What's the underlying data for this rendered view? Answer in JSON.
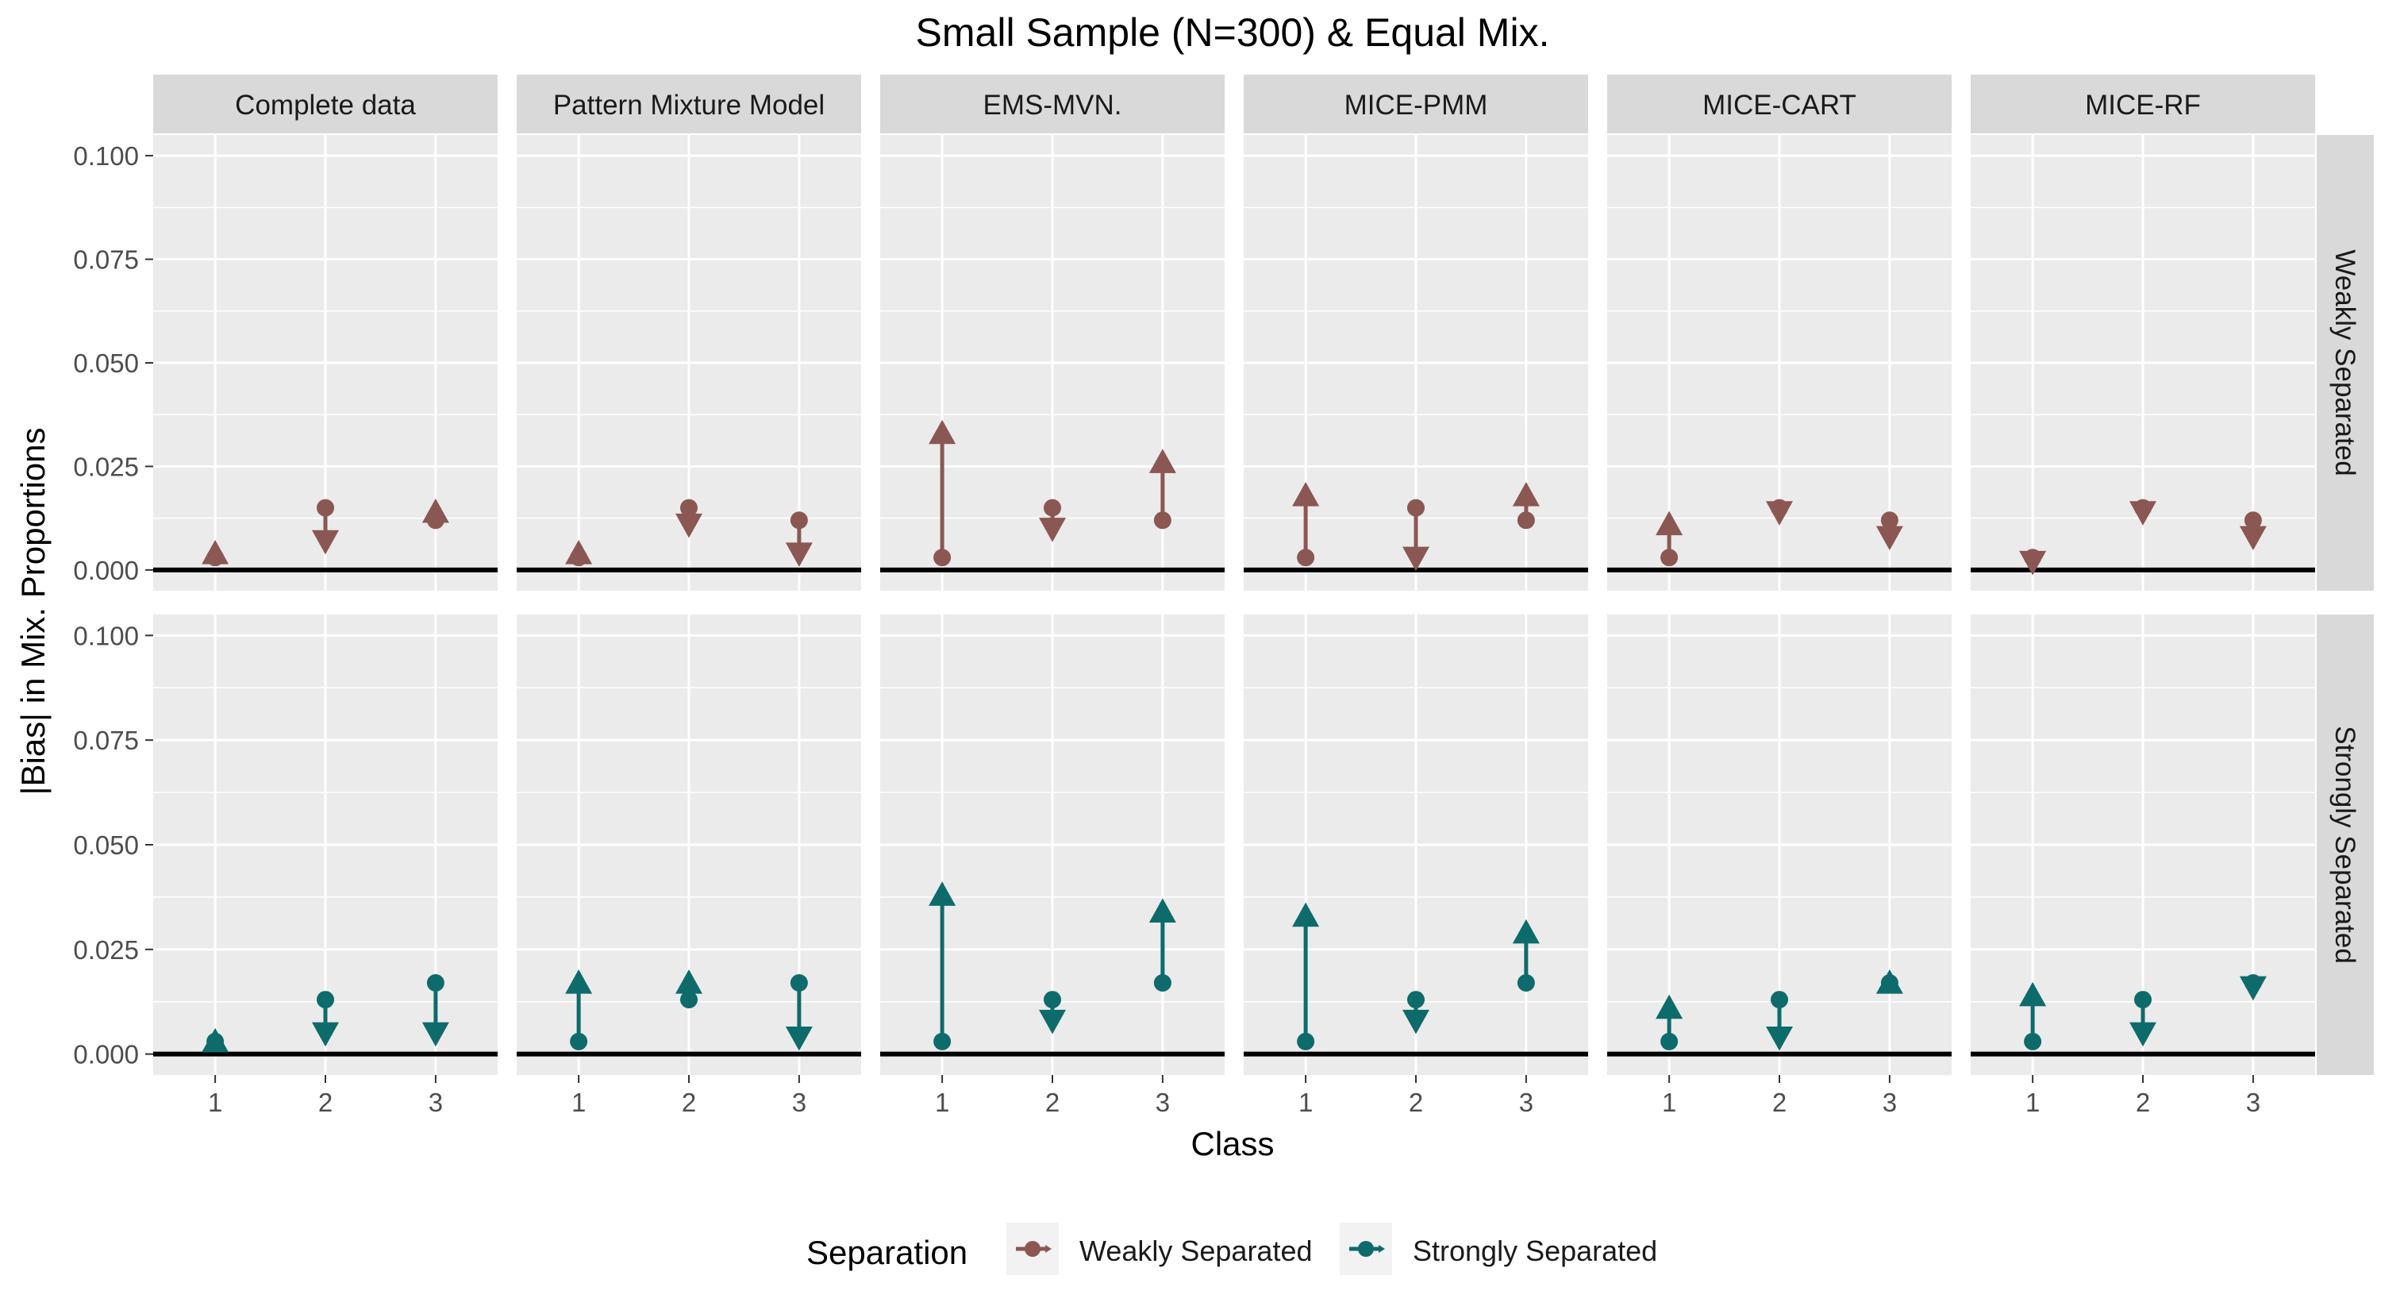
{
  "colors": {
    "weak": "#8B5752",
    "strong": "#0E6B6B",
    "panel_bg": "#EBEBEB",
    "strip_bg": "#D9D9D9",
    "grid": "#FFFFFF",
    "text": "#1A1A1A",
    "axis_text": "#4D4D4D",
    "zero_line": "#000000"
  },
  "chart_data": {
    "type": "scatter",
    "title": "Small Sample (N=300) & Equal Mix.",
    "xlabel": "Class",
    "ylabel": "|Bias| in Mix. Proportions",
    "categories": [
      "1",
      "2",
      "3"
    ],
    "ylim": [
      -0.005,
      0.105
    ],
    "y_ticks": [
      "0.000",
      "0.025",
      "0.050",
      "0.075",
      "0.100"
    ],
    "grid": true,
    "reference_line": 0,
    "columns": [
      "Complete data",
      "Pattern Mixture Model",
      "EMS-MVN.",
      "MICE-PMM",
      "MICE-CART",
      "MICE-RF"
    ],
    "rows": [
      "Weakly Separated",
      "Strongly Separated"
    ],
    "legend": {
      "title": "Separation",
      "position": "bottom",
      "entries": [
        "Weakly Separated",
        "Strongly Separated"
      ]
    },
    "series": [
      {
        "name": "Weakly Separated",
        "panels": [
          {
            "method": "Complete data",
            "start": [
              0.003,
              0.015,
              0.012
            ],
            "end": [
              0.004,
              0.007,
              0.014
            ]
          },
          {
            "method": "Pattern Mixture Model",
            "start": [
              0.003,
              0.015,
              0.012
            ],
            "end": [
              0.004,
              0.011,
              0.004
            ]
          },
          {
            "method": "EMS-MVN.",
            "start": [
              0.003,
              0.015,
              0.012
            ],
            "end": [
              0.033,
              0.01,
              0.026
            ]
          },
          {
            "method": "MICE-PMM",
            "start": [
              0.003,
              0.015,
              0.012
            ],
            "end": [
              0.018,
              0.003,
              0.018
            ]
          },
          {
            "method": "MICE-CART",
            "start": [
              0.003,
              0.015,
              0.012
            ],
            "end": [
              0.011,
              0.014,
              0.008
            ]
          },
          {
            "method": "MICE-RF",
            "start": [
              0.003,
              0.015,
              0.012
            ],
            "end": [
              0.002,
              0.014,
              0.008
            ]
          }
        ]
      },
      {
        "name": "Strongly Separated",
        "panels": [
          {
            "method": "Complete data",
            "start": [
              0.003,
              0.013,
              0.017
            ],
            "end": [
              0.003,
              0.005,
              0.005
            ]
          },
          {
            "method": "Pattern Mixture Model",
            "start": [
              0.003,
              0.013,
              0.017
            ],
            "end": [
              0.017,
              0.017,
              0.004
            ]
          },
          {
            "method": "EMS-MVN.",
            "start": [
              0.003,
              0.013,
              0.017
            ],
            "end": [
              0.038,
              0.008,
              0.034
            ]
          },
          {
            "method": "MICE-PMM",
            "start": [
              0.003,
              0.013,
              0.017
            ],
            "end": [
              0.033,
              0.008,
              0.029
            ]
          },
          {
            "method": "MICE-CART",
            "start": [
              0.003,
              0.013,
              0.017
            ],
            "end": [
              0.011,
              0.004,
              0.017
            ]
          },
          {
            "method": "MICE-RF",
            "start": [
              0.003,
              0.013,
              0.017
            ],
            "end": [
              0.014,
              0.005,
              0.016
            ]
          }
        ]
      }
    ]
  }
}
